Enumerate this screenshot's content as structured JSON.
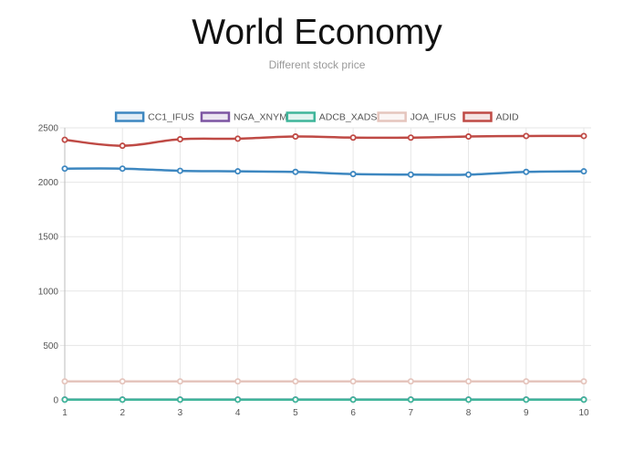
{
  "header": {
    "title": "World Economy",
    "subtitle": "Different stock price"
  },
  "chart_data": {
    "type": "line",
    "x": [
      1,
      2,
      3,
      4,
      5,
      6,
      7,
      8,
      9,
      10
    ],
    "ylim": [
      0,
      2500
    ],
    "yticks": [
      0,
      500,
      1000,
      1500,
      2000,
      2500
    ],
    "grid": true,
    "legend_position": "top",
    "series": [
      {
        "name": "CC1_IFUS",
        "color": "#3d87c0",
        "values": [
          2125,
          2125,
          2105,
          2100,
          2095,
          2075,
          2070,
          2070,
          2095,
          2100
        ]
      },
      {
        "name": "NGA_XNYM",
        "color": "#7d55a2",
        "values": [
          3,
          3,
          3,
          3,
          3,
          3,
          3,
          3,
          3,
          3
        ]
      },
      {
        "name": "ADCB_XADS",
        "color": "#3fb59a",
        "values": [
          2,
          2,
          2,
          2,
          2,
          2,
          2,
          2,
          2,
          2
        ]
      },
      {
        "name": "JOA_IFUS",
        "color": "#e5c5bd",
        "values": [
          170,
          170,
          170,
          170,
          170,
          170,
          170,
          170,
          170,
          170
        ]
      },
      {
        "name": "ADID",
        "color": "#bf4a45",
        "values": [
          2390,
          2335,
          2395,
          2400,
          2420,
          2410,
          2410,
          2420,
          2425,
          2425
        ]
      }
    ]
  }
}
